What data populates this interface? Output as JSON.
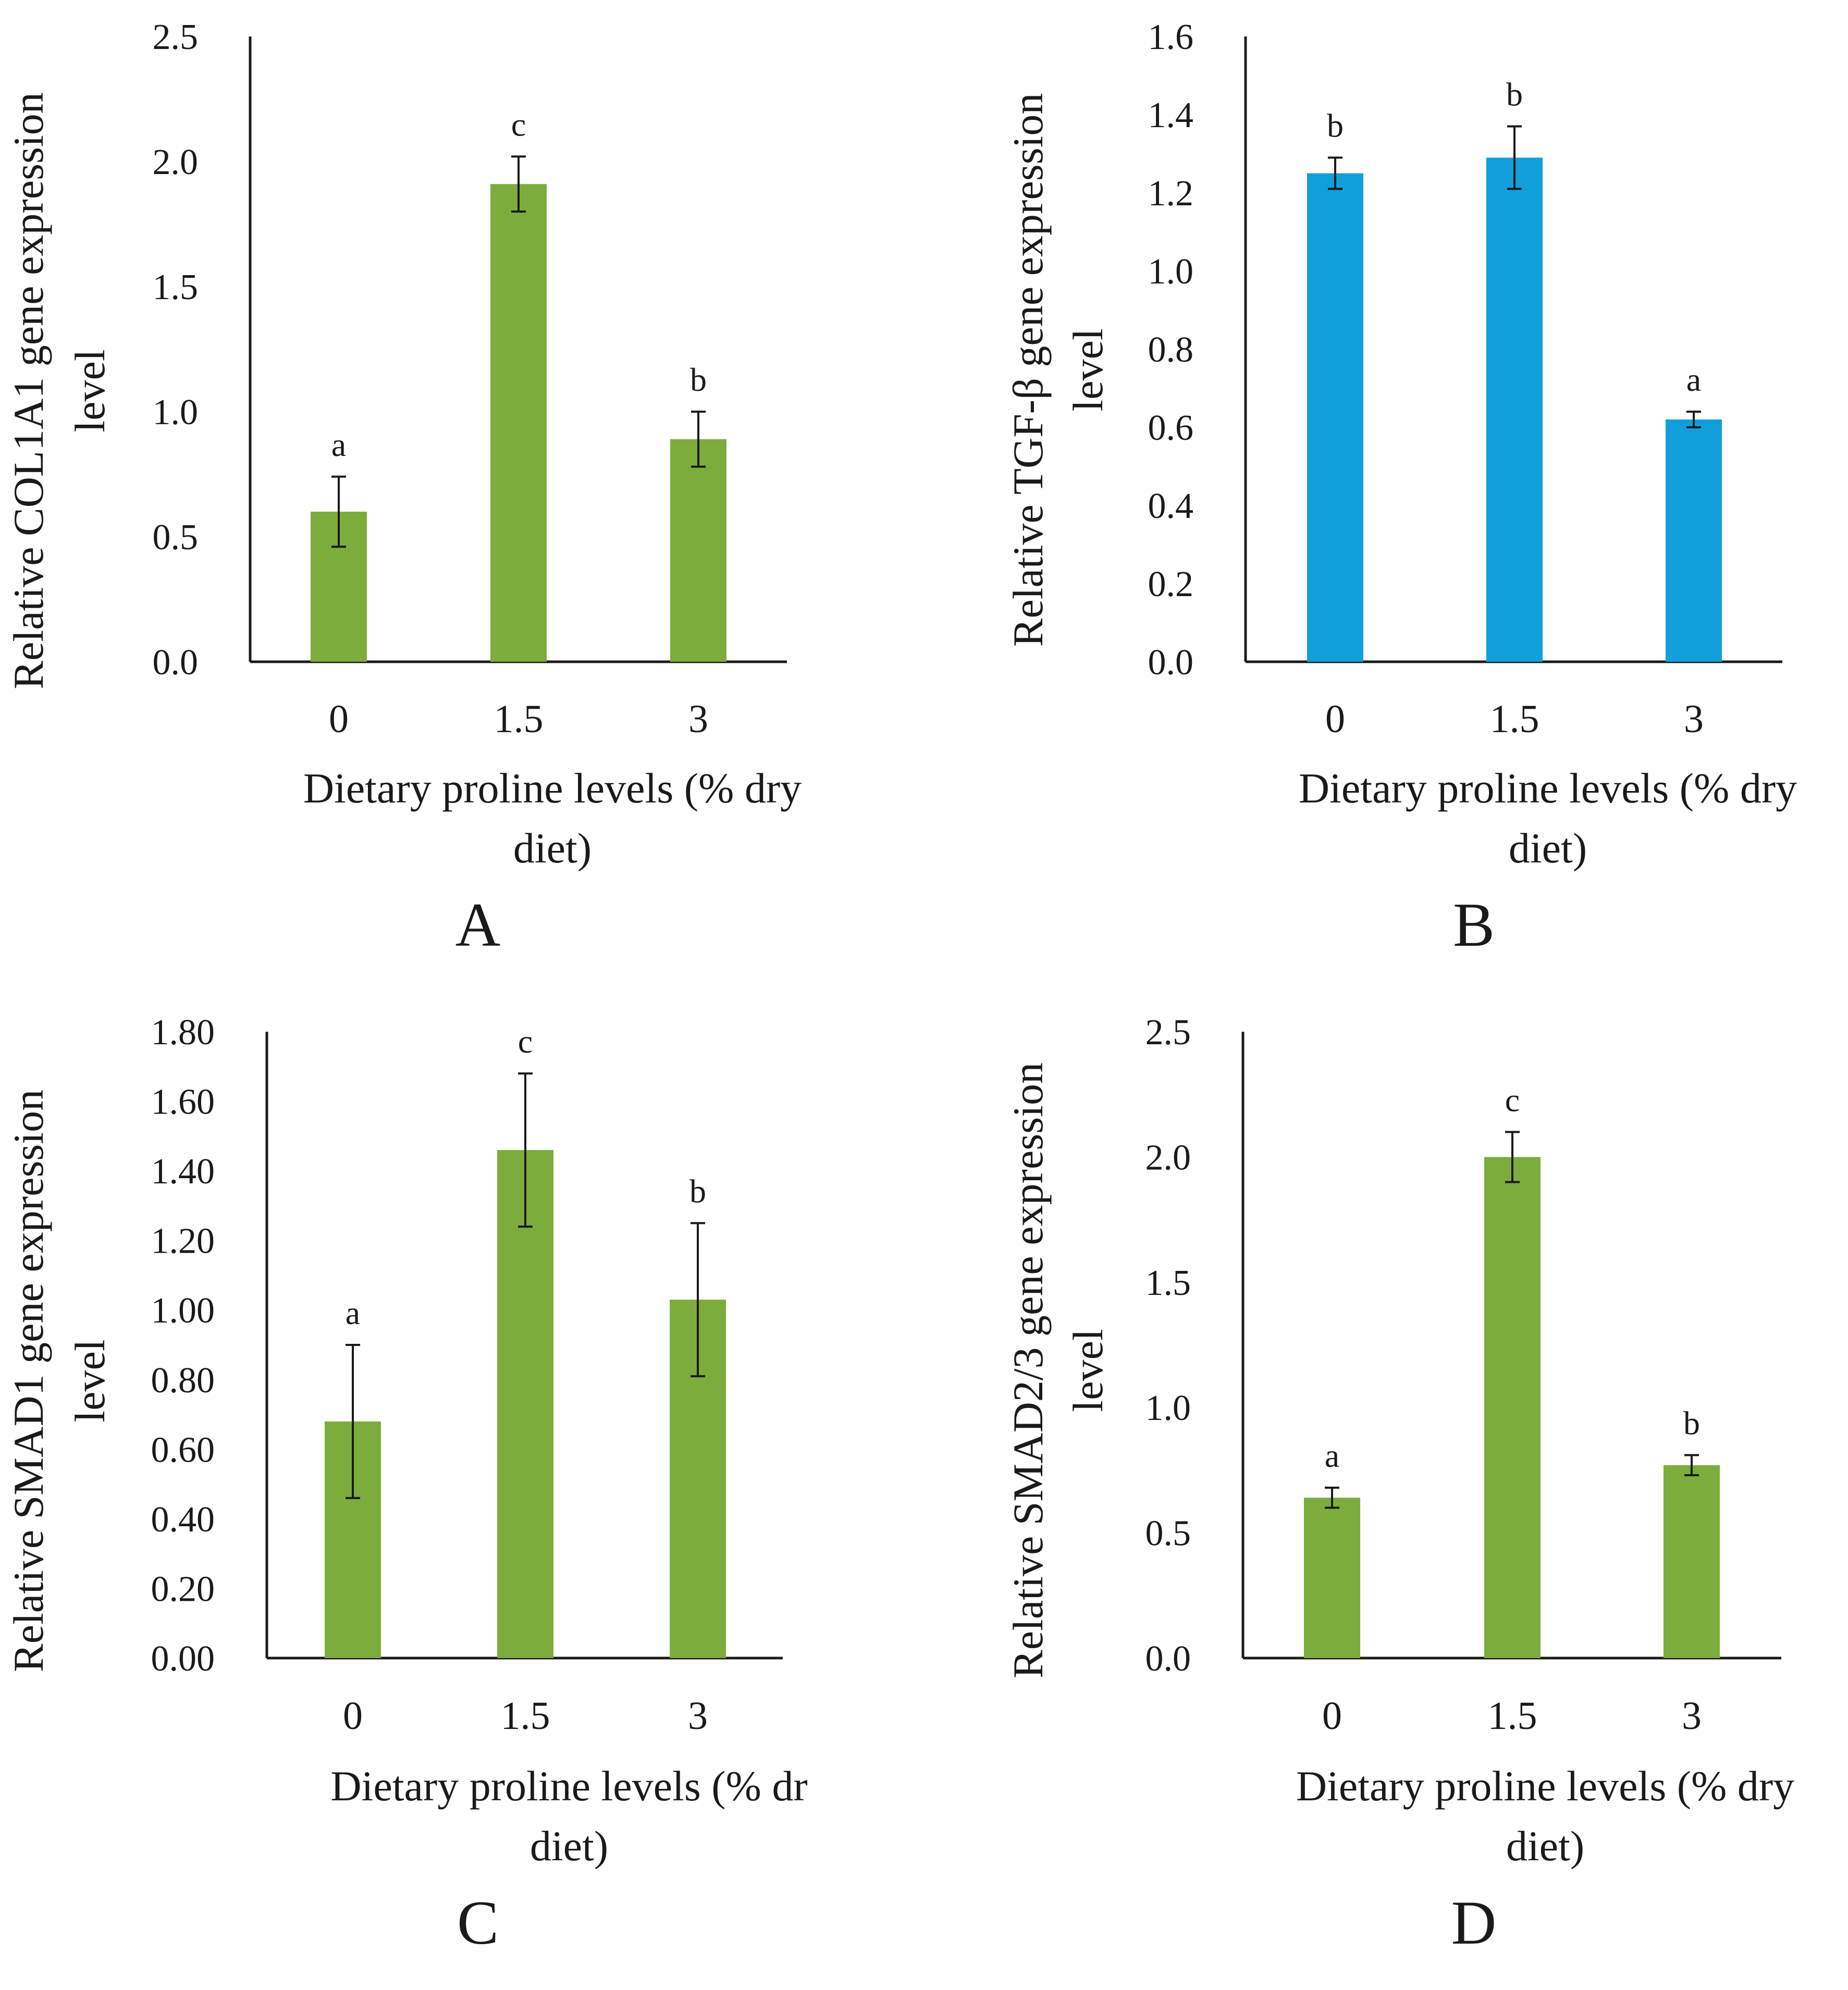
{
  "chart_data": [
    {
      "type": "bar",
      "panel_label": "A",
      "ylabel_lines": [
        "Relative COL1A1 gene expression",
        "level"
      ],
      "xlabel_lines": [
        "Dietary proline levels (% dry",
        "diet)"
      ],
      "categories": [
        "0",
        "1.5",
        "3"
      ],
      "values": [
        0.6,
        1.91,
        0.89
      ],
      "errors": [
        0.14,
        0.11,
        0.11
      ],
      "significance": [
        "a",
        "c",
        "b"
      ],
      "ylim": [
        0,
        2.5
      ],
      "yticks": [
        "0.0",
        "0.5",
        "1.0",
        "1.5",
        "2.0",
        "2.5"
      ],
      "color": "#7cac3c",
      "grid": false
    },
    {
      "type": "bar",
      "panel_label": "B",
      "ylabel_lines": [
        "Relative TGF-β gene expression",
        "level"
      ],
      "xlabel_lines": [
        "Dietary proline levels (% dry",
        "diet)"
      ],
      "categories": [
        "0",
        "1.5",
        "3"
      ],
      "values": [
        1.25,
        1.29,
        0.62
      ],
      "errors": [
        0.04,
        0.08,
        0.02
      ],
      "significance": [
        "b",
        "b",
        "a"
      ],
      "ylim": [
        0,
        1.6
      ],
      "yticks": [
        "0.0",
        "0.2",
        "0.4",
        "0.6",
        "0.8",
        "1.0",
        "1.2",
        "1.4",
        "1.6"
      ],
      "color": "#119fdc",
      "grid": false
    },
    {
      "type": "bar",
      "panel_label": "C",
      "ylabel_lines": [
        "Relative SMAD1 gene expression",
        "level"
      ],
      "xlabel_lines": [
        "Dietary proline levels (% dr",
        "diet)"
      ],
      "categories": [
        "0",
        "1.5",
        "3"
      ],
      "values": [
        0.68,
        1.46,
        1.03
      ],
      "errors": [
        0.22,
        0.22,
        0.22
      ],
      "significance": [
        "a",
        "c",
        "b"
      ],
      "ylim": [
        0,
        1.8
      ],
      "yticks": [
        "0.00",
        "0.20",
        "0.40",
        "0.60",
        "0.80",
        "1.00",
        "1.20",
        "1.40",
        "1.60",
        "1.80"
      ],
      "color": "#7cac3c",
      "grid": false
    },
    {
      "type": "bar",
      "panel_label": "D",
      "ylabel_lines": [
        "Relative SMAD2/3 gene expression",
        "level"
      ],
      "xlabel_lines": [
        "Dietary proline levels (% dry",
        "diet)"
      ],
      "categories": [
        "0",
        "1.5",
        "3"
      ],
      "values": [
        0.64,
        2.0,
        0.77
      ],
      "errors": [
        0.04,
        0.1,
        0.04
      ],
      "significance": [
        "a",
        "c",
        "b"
      ],
      "ylim": [
        0,
        2.5
      ],
      "yticks": [
        "0.0",
        "0.5",
        "1.0",
        "1.5",
        "2.0",
        "2.5"
      ],
      "color": "#7cac3c",
      "grid": false
    }
  ]
}
